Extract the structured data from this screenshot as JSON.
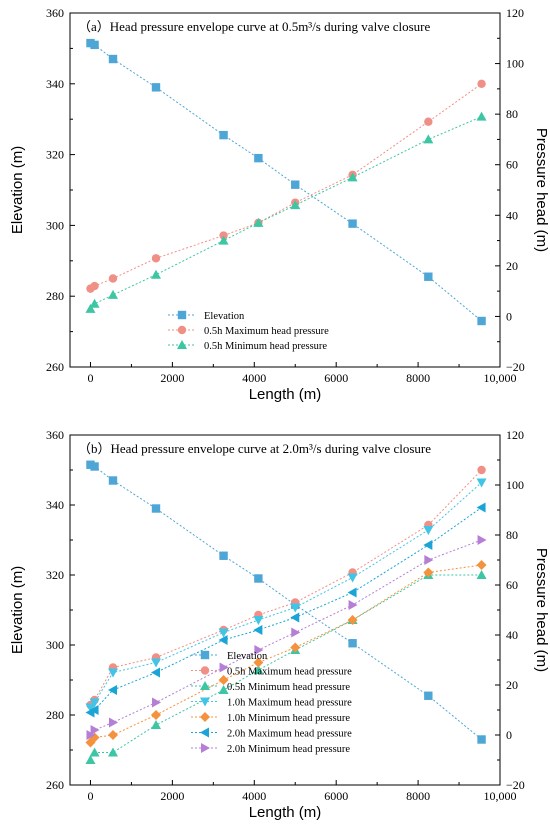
{
  "chart_data": [
    {
      "type": "scatter",
      "title": "（a）Head pressure envelope curve at 0.5m³/s during valve closure",
      "xlabel": "Length (m)",
      "ylabel": "Elevation (m)",
      "y2label": "Pressure head (m)",
      "xlim": [
        -500,
        10000
      ],
      "ylim": [
        260,
        360
      ],
      "y2lim": [
        -20,
        120
      ],
      "xticks": [
        "0",
        "2000",
        "4000",
        "6000",
        "8000",
        "10,000"
      ],
      "yticks": [
        "260",
        "280",
        "300",
        "320",
        "340",
        "360"
      ],
      "y2ticks": [
        "−20",
        "0",
        "20",
        "40",
        "60",
        "80",
        "100",
        "120"
      ],
      "legend_position": "lower-center",
      "series": [
        {
          "name": "Elevation",
          "axis": "left",
          "marker": "square",
          "color": "#4da6d6",
          "x": [
            0,
            100,
            550,
            1600,
            3250,
            4100,
            5000,
            6400,
            8250,
            9550
          ],
          "y": [
            351.5,
            351,
            347,
            339,
            325.5,
            319,
            311.5,
            300.5,
            285.5,
            273
          ]
        },
        {
          "name": "0.5h Maximum head pressure",
          "axis": "right",
          "marker": "circle",
          "color": "#f08f86",
          "x": [
            0,
            100,
            550,
            1600,
            3250,
            4100,
            5000,
            6400,
            8250,
            9550
          ],
          "y": [
            11,
            12,
            15,
            23,
            32,
            37,
            45,
            56,
            77,
            92
          ]
        },
        {
          "name": "0.5h Minimum head pressure",
          "axis": "right",
          "marker": "triangle-up",
          "color": "#3dc6a4",
          "x": [
            0,
            100,
            550,
            1600,
            3250,
            4100,
            5000,
            6400,
            8250,
            9550
          ],
          "y": [
            3,
            5,
            8.5,
            16.5,
            30,
            37,
            44,
            55,
            70,
            79
          ]
        }
      ]
    },
    {
      "type": "scatter",
      "title": "（b）Head pressure envelope curve at 2.0m³/s during valve closure",
      "xlabel": "Length (m)",
      "ylabel": "Elevation (m)",
      "y2label": "Pressure head (m)",
      "xlim": [
        -500,
        10000
      ],
      "ylim": [
        260,
        360
      ],
      "y2lim": [
        -20,
        120
      ],
      "xticks": [
        "0",
        "2000",
        "4000",
        "6000",
        "8000",
        "10,000"
      ],
      "yticks": [
        "260",
        "280",
        "300",
        "320",
        "340",
        "360"
      ],
      "y2ticks": [
        "−20",
        "0",
        "20",
        "40",
        "60",
        "80",
        "100",
        "120"
      ],
      "legend_position": "lower-center",
      "series": [
        {
          "name": "Elevation",
          "axis": "left",
          "marker": "square",
          "color": "#4da6d6",
          "x": [
            0,
            100,
            550,
            1600,
            3250,
            4100,
            5000,
            6400,
            8250,
            9550
          ],
          "y": [
            351.5,
            351,
            347,
            339,
            325.5,
            319,
            311.5,
            300.5,
            285.5,
            273
          ]
        },
        {
          "name": "0.5h Maximum head pressure",
          "axis": "right",
          "marker": "circle",
          "color": "#f08f86",
          "x": [
            0,
            100,
            550,
            1600,
            3250,
            4100,
            5000,
            6400,
            8250,
            9550
          ],
          "y": [
            12,
            14,
            27,
            31,
            42,
            48,
            53,
            65,
            84,
            106
          ]
        },
        {
          "name": "0.5h Minimum head pressure",
          "axis": "right",
          "marker": "triangle-up",
          "color": "#3dc6a4",
          "x": [
            0,
            100,
            550,
            1600,
            3250,
            4100,
            5000,
            6400,
            8250,
            9550
          ],
          "y": [
            -10,
            -7,
            -7,
            4,
            18,
            26,
            34,
            46,
            64,
            64
          ]
        },
        {
          "name": "1.0h Maximum head pressure",
          "axis": "right",
          "marker": "triangle-down",
          "color": "#41c4e6",
          "x": [
            0,
            100,
            550,
            1600,
            3250,
            4100,
            5000,
            6400,
            8250,
            9550
          ],
          "y": [
            11,
            13,
            25,
            29,
            41,
            46,
            51,
            63,
            82,
            101
          ]
        },
        {
          "name": "1.0h Minimum head pressure",
          "axis": "right",
          "marker": "diamond",
          "color": "#f5923d",
          "x": [
            0,
            100,
            550,
            1600,
            3250,
            4100,
            5000,
            6400,
            8250,
            9550
          ],
          "y": [
            -3,
            -1,
            0,
            8,
            22,
            29,
            35,
            46,
            65,
            68
          ]
        },
        {
          "name": "2.0h Maximum head pressure",
          "axis": "right",
          "marker": "triangle-left",
          "color": "#1aa5d6",
          "x": [
            0,
            100,
            550,
            1600,
            3250,
            4100,
            5000,
            6400,
            8250,
            9550
          ],
          "y": [
            9,
            10,
            18,
            25,
            38,
            42,
            47,
            57,
            76,
            91
          ]
        },
        {
          "name": "2.0h Minimum head pressure",
          "axis": "right",
          "marker": "triangle-right",
          "color": "#b57fd6",
          "x": [
            0,
            100,
            550,
            1600,
            3250,
            4100,
            5000,
            6400,
            8250,
            9550
          ],
          "y": [
            0,
            2,
            5,
            13,
            27,
            34,
            41,
            52,
            70,
            78
          ]
        }
      ]
    }
  ]
}
